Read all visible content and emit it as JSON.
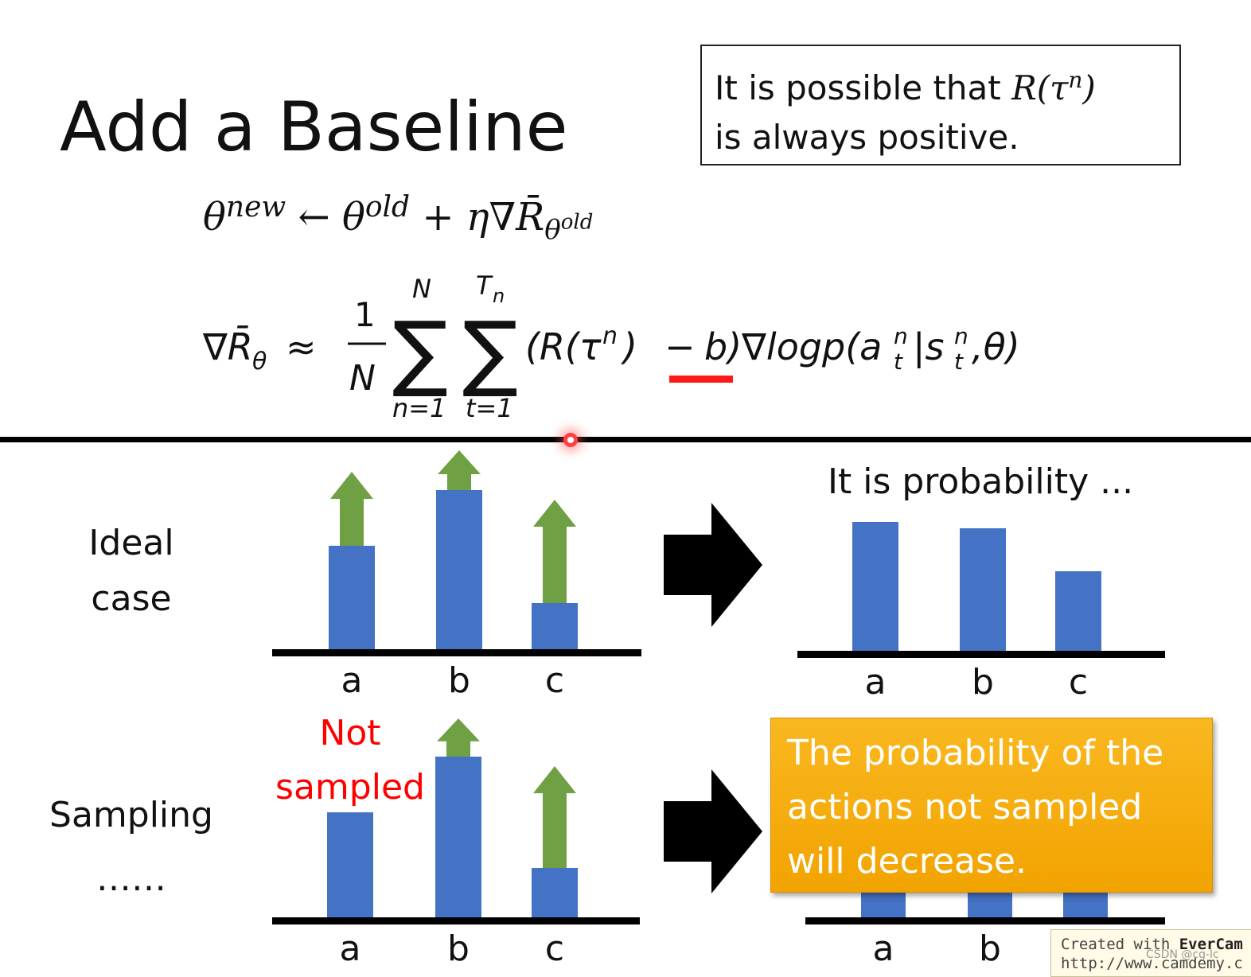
{
  "slide": {
    "title": "Add a Baseline",
    "note": {
      "line1": "It is possible that",
      "line2": "is always positive.",
      "math": "R(τⁿ)"
    },
    "update_rule": "θnew ← θold + η∇R̄θold",
    "gradient_estimate": "∇R̄θ ≈ (1/N) Σn=1..N Σt=1..Tn (R(τⁿ) − b) ∇logp(aₜⁿ|sₜⁿ, θ)",
    "highlight_color": "#ff0000"
  },
  "rows": {
    "ideal_label": "Ideal case",
    "ideal_line1": "Ideal",
    "ideal_line2": "case",
    "sampling_label": "Sampling",
    "sampling_dots": "……",
    "not_sampled_line1": "Not",
    "not_sampled_line2": "sampled",
    "probability_label": "It is probability ...",
    "callout": {
      "line1": "The probability of the",
      "line2": "actions not sampled",
      "line3": "will decrease.",
      "color": "#f5a90e"
    }
  },
  "chart_data": [
    {
      "type": "bar",
      "name": "ideal-case-before",
      "categories": [
        "a",
        "b",
        "c"
      ],
      "values": [
        130,
        200,
        58
      ],
      "arrow_increments": [
        93,
        50,
        130
      ],
      "bar_color": "#4472c4",
      "arrow_color": "#70a044"
    },
    {
      "type": "bar",
      "name": "ideal-case-after",
      "categories": [
        "a",
        "b",
        "c"
      ],
      "values": [
        162,
        154,
        100
      ],
      "bar_color": "#4472c4"
    },
    {
      "type": "bar",
      "name": "sampling-before",
      "categories": [
        "a",
        "b",
        "c"
      ],
      "values": [
        132,
        202,
        62
      ],
      "arrow_increments": [
        0,
        48,
        128
      ],
      "bar_color": "#4472c4",
      "arrow_color": "#70a044"
    },
    {
      "type": "bar",
      "name": "sampling-after",
      "categories": [
        "a",
        "b",
        "c"
      ],
      "values": [
        40,
        40,
        40
      ],
      "bar_color": "#4472c4"
    }
  ],
  "watermark": {
    "line1_prefix": "Created with ",
    "line1_brand": "EverCam",
    "line2": "http://www.camdemy.c",
    "credit": "CSDN @cg-lc"
  }
}
